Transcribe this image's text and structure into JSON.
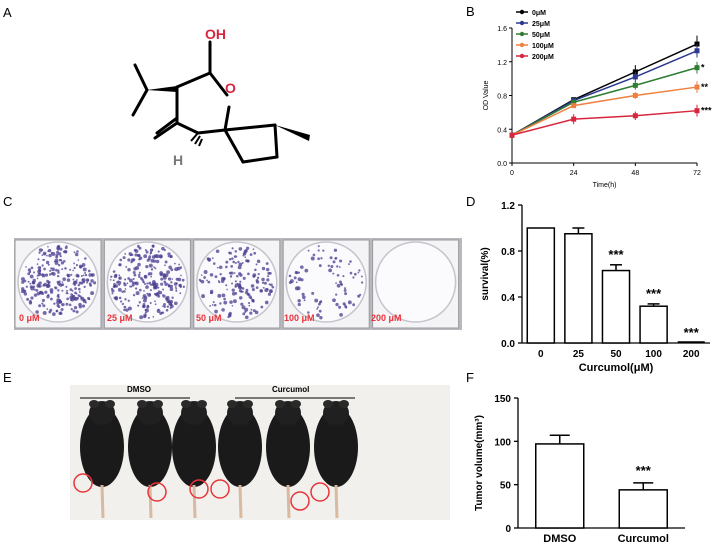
{
  "panels": {
    "a": "A",
    "b": "B",
    "c": "C",
    "d": "D",
    "e": "E",
    "f": "F"
  },
  "structure": {
    "oh_label": "OH",
    "o_label": "O",
    "h_label": "H"
  },
  "colony_plates": [
    "0 μM",
    "25 μM",
    "50 μM",
    "100 μM",
    "200 μM"
  ],
  "mice_groups": {
    "left": "DMSO",
    "right": "Curcumol"
  },
  "colors": {
    "plate_label": "#e8343a",
    "circle": "#e8343a"
  },
  "chart_data": [
    {
      "id": "B",
      "type": "line",
      "x": [
        0,
        24,
        48,
        72
      ],
      "xlabel": "Time(h)",
      "ylabel": "OD Value",
      "xlim": [
        0,
        72
      ],
      "ylim": [
        0,
        1.6
      ],
      "xticks": [
        "0",
        "24",
        "48",
        "72"
      ],
      "yticks": [
        "0.0",
        "0.4",
        "0.8",
        "1.2",
        "1.6"
      ],
      "legend_position": "top-left",
      "series": [
        {
          "name": "0μM",
          "color": "#000000",
          "values": [
            0.33,
            0.75,
            1.08,
            1.41
          ],
          "errors": [
            0.02,
            0.02,
            0.08,
            0.1
          ]
        },
        {
          "name": "25μM",
          "color": "#2b3990",
          "values": [
            0.33,
            0.74,
            1.02,
            1.33
          ],
          "errors": [
            0.02,
            0.02,
            0.06,
            0.08
          ]
        },
        {
          "name": "50μM",
          "color": "#2e7d32",
          "values": [
            0.33,
            0.72,
            0.92,
            1.13
          ],
          "errors": [
            0.02,
            0.02,
            0.05,
            0.07
          ]
        },
        {
          "name": "100μM",
          "color": "#f08040",
          "values": [
            0.33,
            0.68,
            0.8,
            0.9
          ],
          "errors": [
            0.02,
            0.02,
            0.04,
            0.07
          ]
        },
        {
          "name": "200μM",
          "color": "#d7263d",
          "values": [
            0.33,
            0.52,
            0.56,
            0.62
          ],
          "errors": [
            0.02,
            0.06,
            0.05,
            0.07
          ]
        }
      ],
      "annotations": [
        {
          "text": "*",
          "y": 1.13
        },
        {
          "text": "**",
          "y": 0.9
        },
        {
          "text": "***",
          "y": 0.62
        }
      ]
    },
    {
      "id": "D",
      "type": "bar",
      "categories": [
        "0",
        "25",
        "50",
        "100",
        "200"
      ],
      "values": [
        1.0,
        0.95,
        0.63,
        0.32,
        0.0
      ],
      "errors": [
        0.0,
        0.05,
        0.05,
        0.02,
        0.0
      ],
      "xlabel": "Curcumol(μM)",
      "ylabel": "survival(%)",
      "ylim": [
        0,
        1.2
      ],
      "yticks": [
        "0.0",
        "0.4",
        "0.8",
        "1.2"
      ],
      "annotations": [
        "",
        "",
        "***",
        "***",
        "***"
      ]
    },
    {
      "id": "F",
      "type": "bar",
      "categories": [
        "DMSO",
        "Curcumol"
      ],
      "values": [
        97,
        44
      ],
      "errors": [
        10,
        8
      ],
      "xlabel": "",
      "ylabel": "Tumor volume(mm³)",
      "ylim": [
        0,
        150
      ],
      "yticks": [
        "0",
        "50",
        "100",
        "150"
      ],
      "annotations": [
        "",
        "***"
      ]
    }
  ]
}
